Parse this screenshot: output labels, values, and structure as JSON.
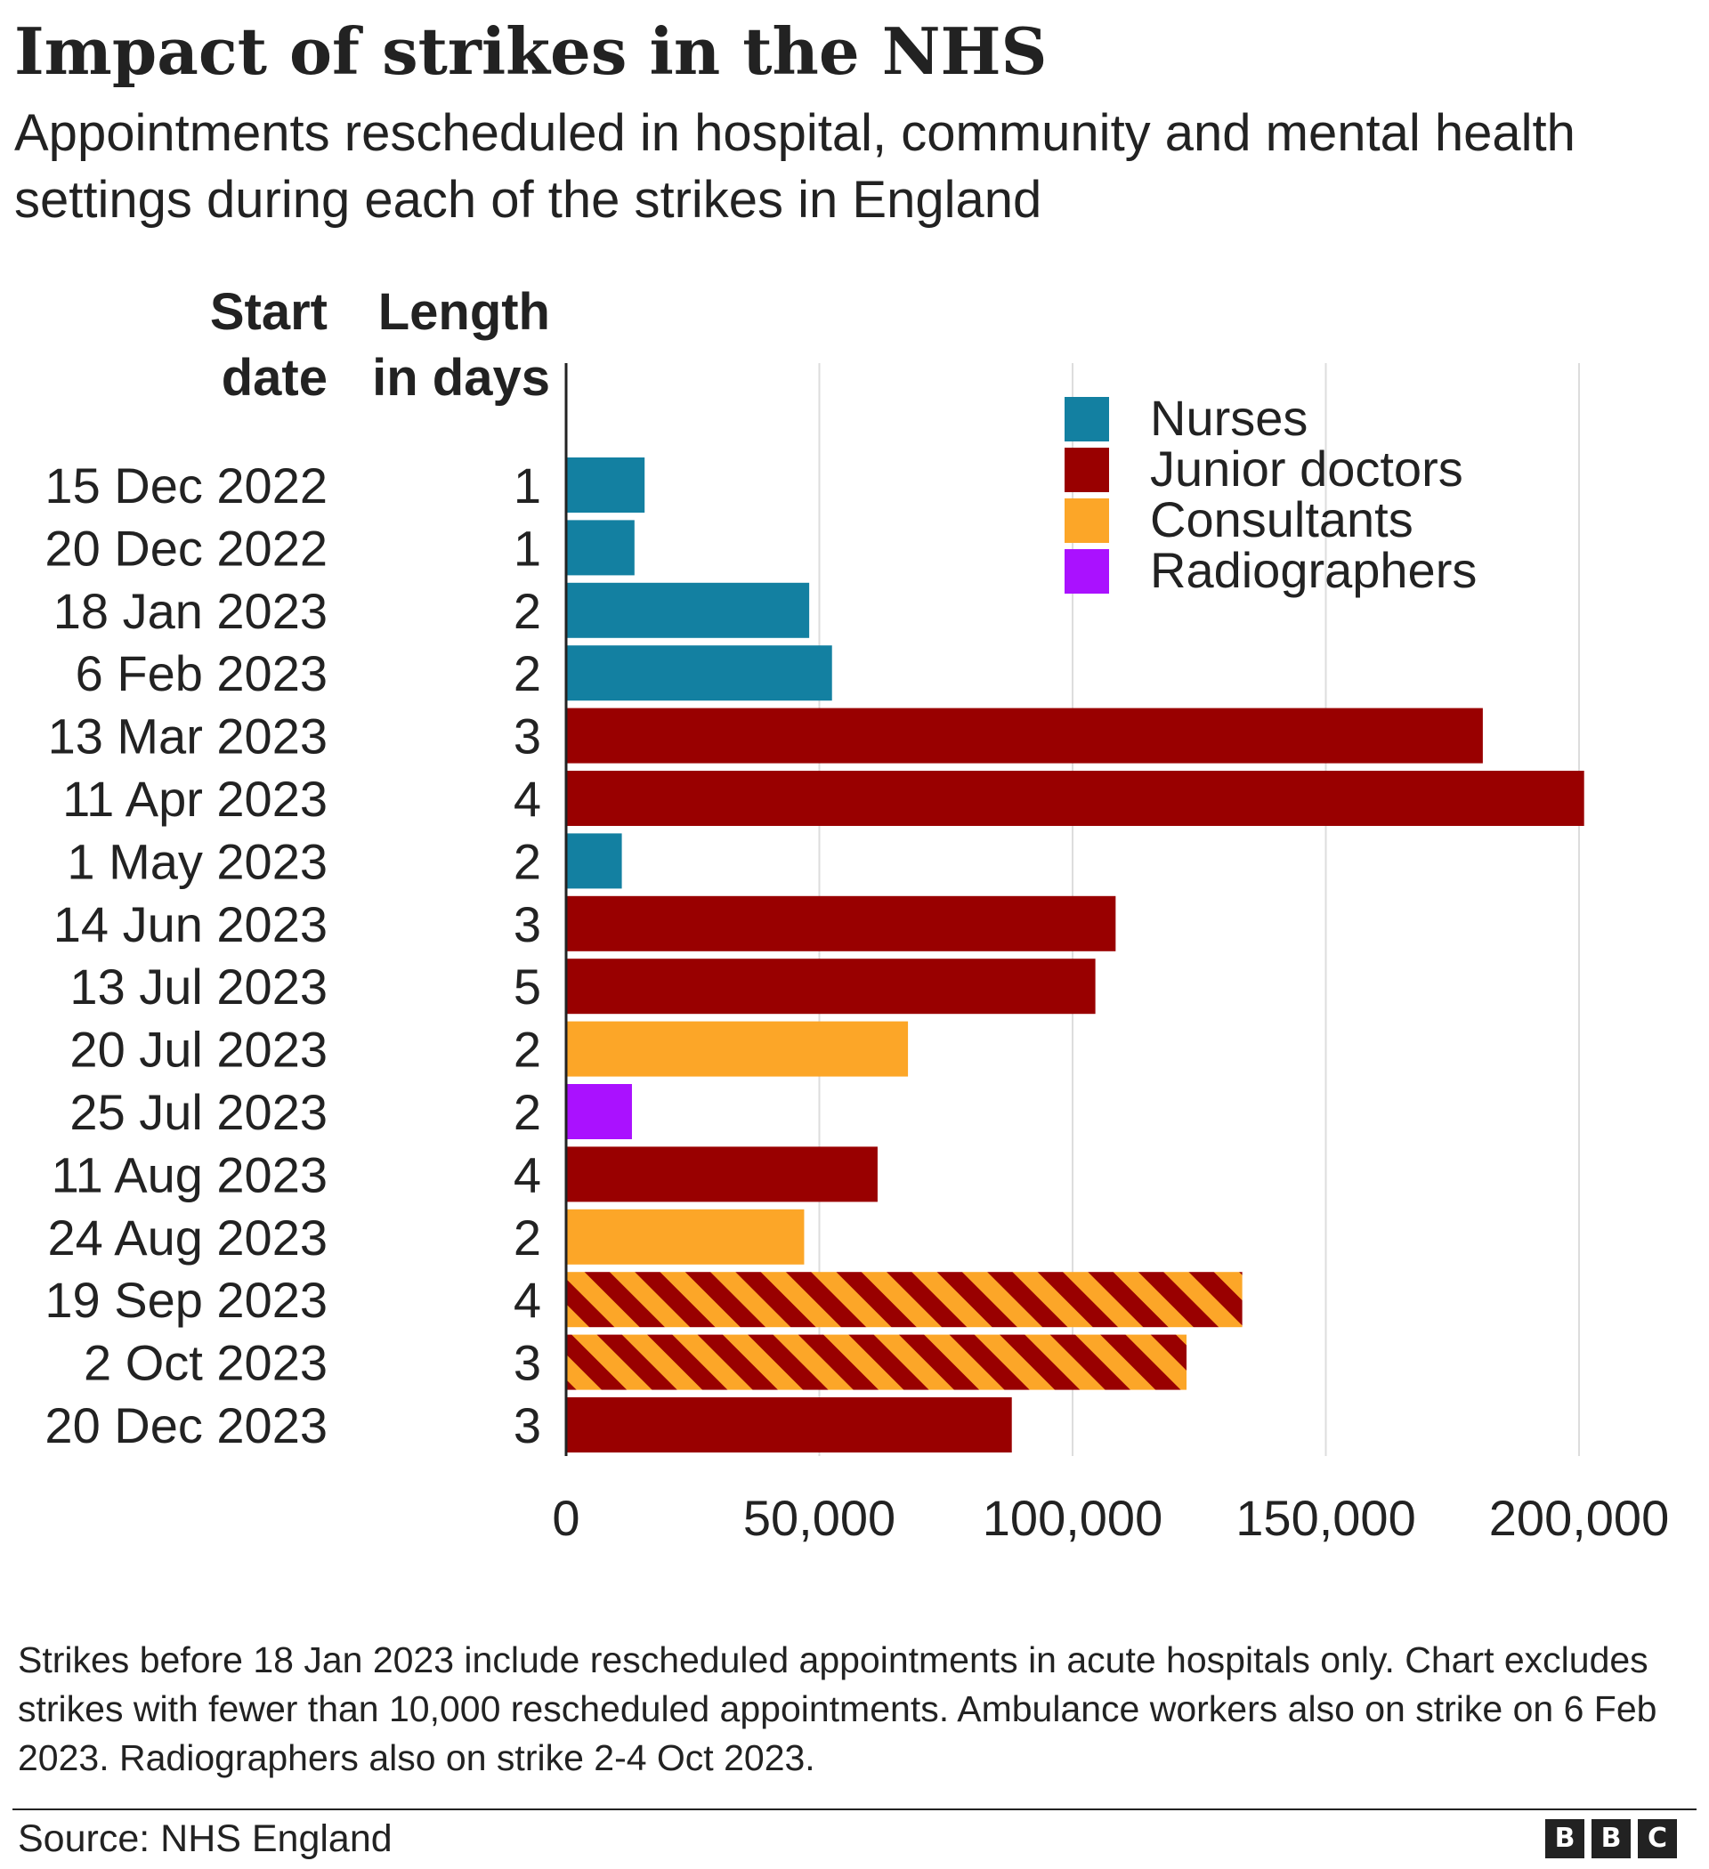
{
  "title": "Impact of strikes in the NHS",
  "subtitle": "Appointments rescheduled in hospital, community and mental health settings during each of the strikes in England",
  "column_headers": {
    "start_date": [
      "Start",
      "date"
    ],
    "length": [
      "Length",
      "in days"
    ]
  },
  "chart_data": {
    "type": "bar",
    "orientation": "horizontal",
    "categories": [
      "15 Dec 2022",
      "20 Dec 2022",
      "18 Jan 2023",
      "6 Feb 2023",
      "13 Mar 2023",
      "11 Apr 2023",
      "1 May 2023",
      "14 Jun 2023",
      "13 Jul 2023",
      "20 Jul 2023",
      "25 Jul 2023",
      "11 Aug 2023",
      "24 Aug 2023",
      "19 Sep 2023",
      "2 Oct 2023",
      "20 Dec 2023"
    ],
    "length_in_days": [
      "1",
      "1",
      "2",
      "2",
      "3",
      "4",
      "2",
      "3",
      "5",
      "2",
      "2",
      "4",
      "2",
      "4",
      "3",
      "3"
    ],
    "values": [
      15500,
      13500,
      48000,
      52500,
      181000,
      201000,
      11000,
      108500,
      104500,
      67500,
      13000,
      61500,
      47000,
      133500,
      122500,
      88000
    ],
    "group": [
      "Nurses",
      "Nurses",
      "Nurses",
      "Nurses",
      "Junior doctors",
      "Junior doctors",
      "Nurses",
      "Junior doctors",
      "Junior doctors",
      "Consultants",
      "Radiographers",
      "Junior doctors",
      "Consultants",
      "Junior doctors + Consultants",
      "Junior doctors + Consultants",
      "Junior doctors"
    ],
    "xlim": [
      0,
      210000
    ],
    "xticks": [
      0,
      50000,
      100000,
      150000,
      200000
    ],
    "xtick_labels": [
      "0",
      "50,000",
      "100,000",
      "150,000",
      "200,000"
    ],
    "grid": true,
    "legend_position": "top-right",
    "legend": [
      {
        "name": "Nurses",
        "color": "#1380a1"
      },
      {
        "name": "Junior doctors",
        "color": "#990000"
      },
      {
        "name": "Consultants",
        "color": "#fca628"
      },
      {
        "name": "Radiographers",
        "color": "#aa11ff"
      }
    ],
    "colors": {
      "Nurses": "#1380a1",
      "Junior doctors": "#990000",
      "Consultants": "#fca628",
      "Radiographers": "#aa11ff"
    }
  },
  "notes": "Strikes before 18 Jan 2023 include rescheduled appointments in acute hospitals only. Chart excludes strikes with fewer than 10,000 rescheduled appointments. Ambulance workers also on strike on 6 Feb 2023. Radiographers also on strike 2-4 Oct 2023.",
  "source": "Source: NHS England",
  "logo": [
    "B",
    "B",
    "C"
  ]
}
